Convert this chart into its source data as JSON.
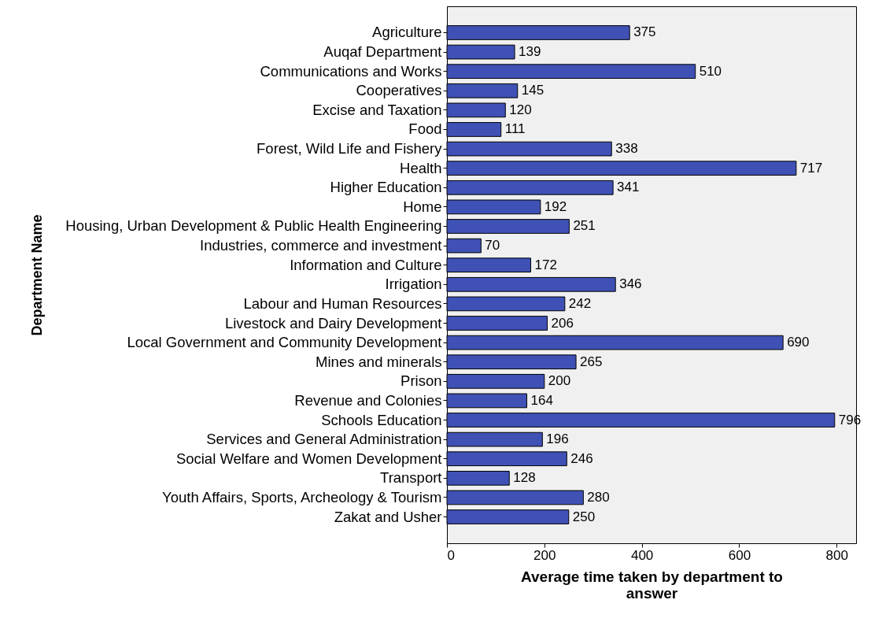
{
  "chart_data": {
    "type": "bar",
    "orientation": "horizontal",
    "xlabel": "Average time taken by department to answer",
    "ylabel": "Department Name",
    "categories": [
      "Agriculture",
      "Auqaf Department",
      "Communications and Works",
      "Cooperatives",
      "Excise and Taxation",
      "Food",
      "Forest, Wild Life and Fishery",
      "Health",
      "Higher Education",
      "Home",
      "Housing, Urban Development & Public Health Engineering",
      "Industries, commerce and investment",
      "Information and Culture",
      "Irrigation",
      "Labour and Human Resources",
      "Livestock and Dairy Development",
      "Local Government and Community Development",
      "Mines and minerals",
      "Prison",
      "Revenue and Colonies",
      "Schools Education",
      "Services and General Administration",
      "Social Welfare and Women Development",
      "Transport",
      "Youth Affairs, Sports, Archeology & Tourism",
      "Zakat and Usher"
    ],
    "values": [
      375,
      139,
      510,
      145,
      120,
      111,
      338,
      717,
      341,
      192,
      251,
      70,
      172,
      346,
      242,
      206,
      690,
      265,
      200,
      164,
      796,
      196,
      246,
      128,
      280,
      250
    ],
    "color": "#3f51b5",
    "xlim": [
      0,
      840
    ],
    "xticks": [
      0,
      200,
      400,
      600,
      800
    ],
    "data_labels": true,
    "grid": false
  }
}
